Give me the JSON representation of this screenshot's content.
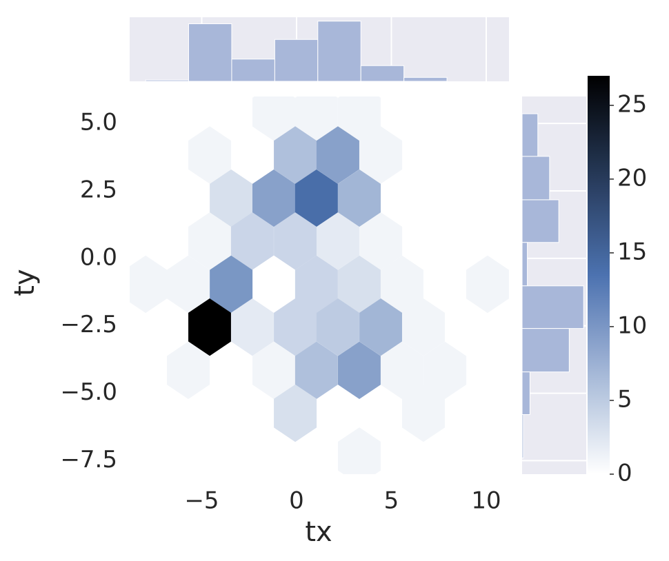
{
  "chart_data": {
    "type": "hexbin",
    "xlabel": "tx",
    "ylabel": "ty",
    "xlim": [
      -8.8,
      11.2
    ],
    "ylim": [
      -8.0,
      6.0
    ],
    "xticks": [
      {
        "value": -5,
        "label": "−5"
      },
      0,
      5,
      10
    ],
    "yticks": [
      {
        "value": 5,
        "label": "5.0"
      },
      2.5,
      {
        "value": 0,
        "label": "0.0"
      },
      {
        "value": -2.5,
        "label": "−2.5"
      },
      {
        "value": -5,
        "label": "−5.0"
      },
      {
        "value": -7.5,
        "label": "−7.5"
      }
    ],
    "x": [
      -1.2,
      1.05,
      3.31,
      -4.58,
      -0.07,
      2.18,
      4.44,
      -3.45,
      -1.2,
      1.05,
      3.31,
      -4.58,
      -2.33,
      -0.07,
      2.18,
      4.44,
      -7.96,
      -5.71,
      -3.45,
      1.05,
      3.31,
      5.56,
      10.07,
      -4.58,
      -2.33,
      -0.07,
      2.18,
      4.44,
      6.69,
      -5.71,
      -1.2,
      1.05,
      3.31,
      5.56,
      7.82,
      -0.07,
      6.69,
      3.31
    ],
    "y": [
      5.42,
      5.42,
      5.42,
      3.83,
      3.83,
      3.83,
      3.83,
      2.23,
      2.23,
      2.23,
      2.23,
      0.64,
      0.64,
      0.64,
      0.64,
      0.64,
      -0.96,
      -0.96,
      -0.96,
      -0.96,
      -0.96,
      -0.96,
      -0.96,
      -2.55,
      -2.55,
      -2.55,
      -2.55,
      -2.55,
      -2.55,
      -4.15,
      -4.15,
      -4.15,
      -4.15,
      -4.15,
      -4.15,
      -5.74,
      -5.74,
      -7.33
    ],
    "values": [
      1,
      1,
      1,
      1,
      6,
      9,
      1,
      3,
      9,
      14,
      7,
      1,
      4,
      4,
      2,
      1,
      1,
      1,
      10,
      4,
      3,
      1,
      1,
      27,
      2,
      4,
      5,
      7,
      1,
      1,
      1,
      6,
      9,
      1,
      1,
      3,
      1,
      1
    ],
    "colormap": [
      "#ffffff",
      "#4c72b0",
      "#000000"
    ],
    "clim": [
      0,
      27
    ],
    "cticks": [
      0,
      5,
      10,
      15,
      20,
      25
    ],
    "marginal_x": {
      "bins": [
        -7.96,
        -5.69,
        -3.42,
        -1.15,
        1.12,
        3.39,
        5.66,
        7.93,
        10.2
      ],
      "values": [
        1,
        44,
        17,
        32,
        46,
        12,
        3,
        0
      ],
      "color": "#a8b7d9",
      "ylim": [
        0,
        49
      ]
    },
    "marginal_y": {
      "bins": [
        5.36,
        3.78,
        2.17,
        0.59,
        -1.02,
        -2.6,
        -4.21,
        -5.79,
        -7.4
      ],
      "values": [
        12,
        21,
        28,
        4,
        47,
        36,
        6,
        1
      ],
      "color": "#a8b7d9",
      "xlim": [
        0,
        49
      ]
    }
  }
}
